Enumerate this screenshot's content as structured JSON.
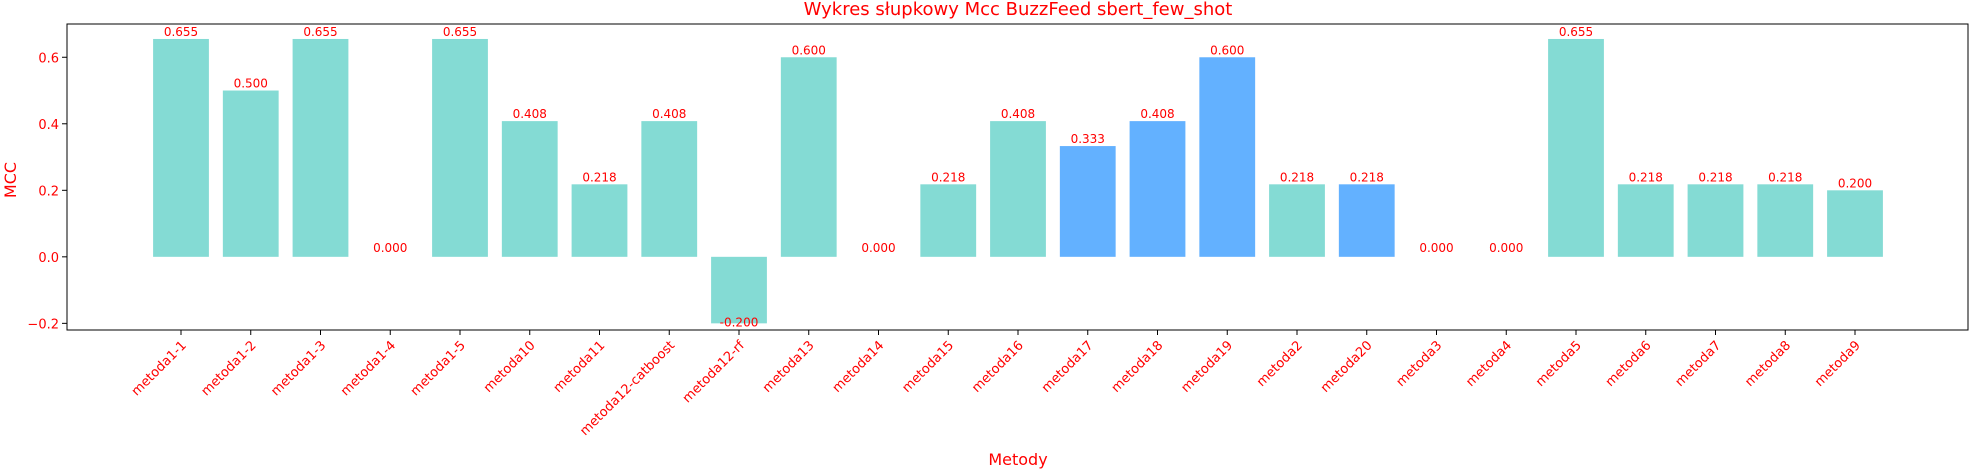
{
  "chart_data": {
    "type": "bar",
    "title": "Wykres słupkowy Mcc BuzzFeed sbert_few_shot",
    "xlabel": "Metody",
    "ylabel": "MCC",
    "ylim": [
      -0.22,
      0.7
    ],
    "yticks": [
      -0.2,
      0.0,
      0.2,
      0.4,
      0.6
    ],
    "ytick_labels": [
      "−0.2",
      "0.0",
      "0.2",
      "0.4",
      "0.6"
    ],
    "grid": false,
    "categories": [
      "metoda1-1",
      "metoda1-2",
      "metoda1-3",
      "metoda1-4",
      "metoda1-5",
      "metoda10",
      "metoda11",
      "metoda12-catboost",
      "metoda12-rf",
      "metoda13",
      "metoda14",
      "metoda15",
      "metoda16",
      "metoda17",
      "metoda18",
      "metoda19",
      "metoda2",
      "metoda20",
      "metoda3",
      "metoda4",
      "metoda5",
      "metoda6",
      "metoda7",
      "metoda8",
      "metoda9"
    ],
    "values": [
      0.655,
      0.5,
      0.655,
      0.0,
      0.655,
      0.408,
      0.218,
      0.408,
      -0.2,
      0.6,
      0.0,
      0.218,
      0.408,
      0.333,
      0.408,
      0.6,
      0.218,
      0.218,
      0.0,
      0.0,
      0.655,
      0.218,
      0.218,
      0.218,
      0.2
    ],
    "value_labels": [
      "0.655",
      "0.500",
      "0.655",
      "0.000",
      "0.655",
      "0.408",
      "0.218",
      "0.408",
      "-0.200",
      "0.600",
      "0.000",
      "0.218",
      "0.408",
      "0.333",
      "0.408",
      "0.600",
      "0.218",
      "0.218",
      "0.000",
      "0.000",
      "0.655",
      "0.218",
      "0.218",
      "0.218",
      "0.200"
    ],
    "bar_colors": [
      "#84dbd4",
      "#84dbd4",
      "#84dbd4",
      "#84dbd4",
      "#84dbd4",
      "#84dbd4",
      "#84dbd4",
      "#84dbd4",
      "#84dbd4",
      "#84dbd4",
      "#84dbd4",
      "#84dbd4",
      "#84dbd4",
      "#63b1ff",
      "#63b1ff",
      "#63b1ff",
      "#84dbd4",
      "#63b1ff",
      "#84dbd4",
      "#84dbd4",
      "#84dbd4",
      "#84dbd4",
      "#84dbd4",
      "#84dbd4",
      "#84dbd4"
    ],
    "text_color": "#ff0000",
    "axis_color": "#000000"
  }
}
